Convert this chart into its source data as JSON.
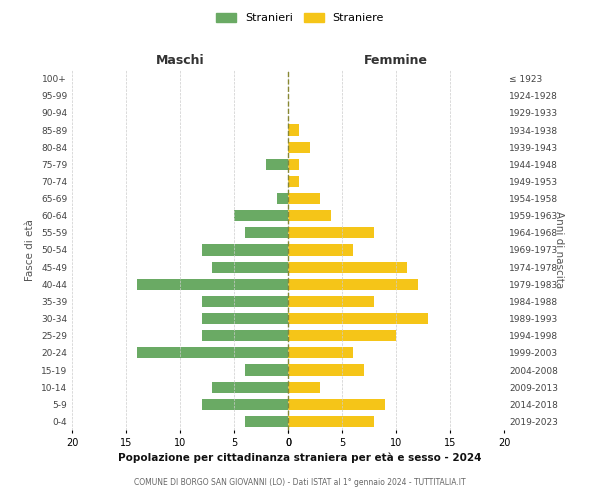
{
  "age_groups": [
    "100+",
    "95-99",
    "90-94",
    "85-89",
    "80-84",
    "75-79",
    "70-74",
    "65-69",
    "60-64",
    "55-59",
    "50-54",
    "45-49",
    "40-44",
    "35-39",
    "30-34",
    "25-29",
    "20-24",
    "15-19",
    "10-14",
    "5-9",
    "0-4"
  ],
  "birth_years": [
    "≤ 1923",
    "1924-1928",
    "1929-1933",
    "1934-1938",
    "1939-1943",
    "1944-1948",
    "1949-1953",
    "1954-1958",
    "1959-1963",
    "1964-1968",
    "1969-1973",
    "1974-1978",
    "1979-1983",
    "1984-1988",
    "1989-1993",
    "1994-1998",
    "1999-2003",
    "2004-2008",
    "2009-2013",
    "2014-2018",
    "2019-2023"
  ],
  "maschi": [
    0,
    0,
    0,
    0,
    0,
    2,
    0,
    1,
    5,
    4,
    8,
    7,
    14,
    8,
    8,
    8,
    14,
    4,
    7,
    8,
    4
  ],
  "femmine": [
    0,
    0,
    0,
    1,
    2,
    1,
    1,
    3,
    4,
    8,
    6,
    11,
    12,
    8,
    13,
    10,
    6,
    7,
    3,
    9,
    8
  ],
  "color_maschi": "#6aaa64",
  "color_femmine": "#f5c518",
  "color_center_line": "#888833",
  "title_main": "Popolazione per cittadinanza straniera per età e sesso - 2024",
  "subtitle": "COMUNE DI BORGO SAN GIOVANNI (LO) - Dati ISTAT al 1° gennaio 2024 - TUTTITALIA.IT",
  "label_maschi": "Maschi",
  "label_femmine": "Femmine",
  "ylabel_left": "Fasce di età",
  "ylabel_right": "Anni di nascita",
  "legend_maschi": "Stranieri",
  "legend_femmine": "Straniere",
  "xlim": 20,
  "background_color": "#ffffff"
}
